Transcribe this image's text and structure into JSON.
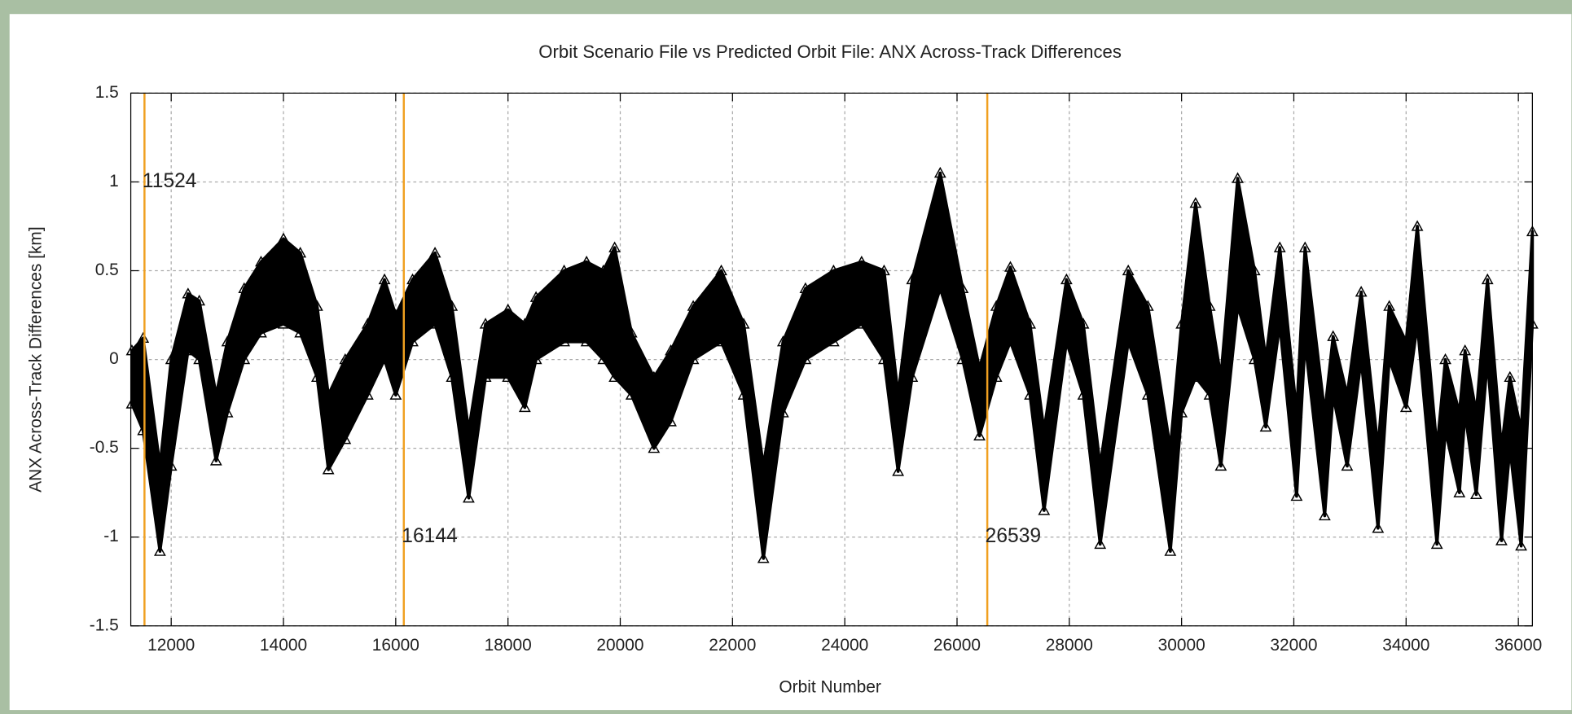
{
  "chart_data": {
    "type": "band",
    "title": "Orbit Scenario File vs Predicted Orbit File: ANX Across-Track Differences",
    "x_label": "Orbit Number",
    "y_label": "ANX Across-Track Differences [km]",
    "color": "#000000",
    "xlim": [
      11280,
      36250
    ],
    "ylim": [
      -1.5,
      1.5
    ],
    "xticks": [
      12000,
      14000,
      16000,
      18000,
      20000,
      22000,
      24000,
      26000,
      28000,
      30000,
      32000,
      34000,
      36000
    ],
    "yticks": [
      -1.5,
      -1,
      -0.5,
      0,
      0.5,
      1,
      1.5
    ],
    "grid": true,
    "markers": {
      "color": "#f0a020",
      "values": [
        11524,
        16144,
        26539
      ]
    },
    "x": [
      11300,
      11500,
      11800,
      12000,
      12300,
      12500,
      12800,
      13000,
      13300,
      13600,
      14000,
      14300,
      14600,
      14800,
      15100,
      15500,
      15800,
      16000,
      16300,
      16700,
      17000,
      17300,
      17600,
      18000,
      18300,
      18500,
      19000,
      19400,
      19700,
      19900,
      20200,
      20600,
      20900,
      21300,
      21800,
      22200,
      22550,
      22900,
      23300,
      23800,
      24300,
      24700,
      24950,
      25200,
      25700,
      26100,
      26400,
      26700,
      26950,
      27300,
      27550,
      27950,
      28250,
      28550,
      29050,
      29400,
      29800,
      30000,
      30250,
      30500,
      30700,
      31000,
      31300,
      31500,
      31750,
      32050,
      32200,
      32550,
      32700,
      32950,
      33200,
      33500,
      33700,
      34000,
      34200,
      34550,
      34700,
      34950,
      35050,
      35250,
      35450,
      35700,
      35850,
      36050,
      36250
    ],
    "low": [
      -0.25,
      -0.4,
      -1.08,
      -0.6,
      0.05,
      0,
      -0.57,
      -0.3,
      0,
      0.15,
      0.2,
      0.15,
      -0.1,
      -0.62,
      -0.45,
      -0.2,
      0,
      -0.2,
      0.1,
      0.2,
      -0.1,
      -0.78,
      -0.1,
      -0.1,
      -0.27,
      0,
      0.1,
      0.1,
      0,
      -0.1,
      -0.2,
      -0.5,
      -0.35,
      0,
      0.1,
      -0.2,
      -1.12,
      -0.3,
      0,
      0.1,
      0.2,
      0,
      -0.63,
      -0.1,
      0.4,
      0,
      -0.43,
      -0.1,
      0.1,
      -0.2,
      -0.85,
      0.1,
      -0.2,
      -1.04,
      0.1,
      -0.2,
      -1.08,
      -0.3,
      -0.1,
      -0.2,
      -0.6,
      0.3,
      0,
      -0.38,
      0.2,
      -0.77,
      0.1,
      -0.88,
      -0.2,
      -0.6,
      0,
      -0.95,
      0,
      -0.27,
      0.2,
      -1.04,
      -0.4,
      -0.75,
      -0.3,
      -0.76,
      0,
      -1.02,
      -0.5,
      -1.05,
      0.2
    ],
    "high": [
      0.05,
      0.12,
      -0.6,
      0,
      0.37,
      0.33,
      -0.2,
      0.1,
      0.4,
      0.55,
      0.68,
      0.6,
      0.3,
      -0.2,
      0,
      0.2,
      0.45,
      0.25,
      0.45,
      0.6,
      0.3,
      -0.4,
      0.2,
      0.28,
      0.2,
      0.35,
      0.5,
      0.55,
      0.5,
      0.63,
      0.15,
      -0.1,
      0.05,
      0.3,
      0.5,
      0.2,
      -0.6,
      0.1,
      0.4,
      0.5,
      0.55,
      0.5,
      -0.2,
      0.45,
      1.05,
      0.4,
      -0.05,
      0.3,
      0.52,
      0.2,
      -0.4,
      0.45,
      0.2,
      -0.6,
      0.5,
      0.3,
      -0.5,
      0.2,
      0.88,
      0.3,
      -0.1,
      1.02,
      0.5,
      0,
      0.63,
      -0.3,
      0.63,
      -0.3,
      0.13,
      -0.2,
      0.38,
      -0.5,
      0.3,
      0.1,
      0.75,
      -0.5,
      0,
      -0.3,
      0.05,
      -0.3,
      0.45,
      -0.5,
      -0.1,
      -0.4,
      0.72
    ]
  }
}
